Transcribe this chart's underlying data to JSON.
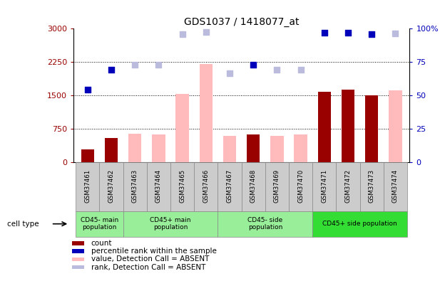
{
  "title": "GDS1037 / 1418077_at",
  "samples": [
    "GSM37461",
    "GSM37462",
    "GSM37463",
    "GSM37464",
    "GSM37465",
    "GSM37466",
    "GSM37467",
    "GSM37468",
    "GSM37469",
    "GSM37470",
    "GSM37471",
    "GSM37472",
    "GSM37473",
    "GSM37474"
  ],
  "is_absent": [
    false,
    false,
    true,
    true,
    true,
    true,
    true,
    false,
    true,
    true,
    false,
    false,
    false,
    true
  ],
  "count_values": [
    280,
    530,
    null,
    null,
    null,
    null,
    null,
    620,
    null,
    null,
    1580,
    1630,
    1500,
    null
  ],
  "absent_values": [
    null,
    null,
    640,
    620,
    1530,
    2200,
    590,
    null,
    590,
    620,
    null,
    null,
    null,
    1610
  ],
  "rank_present": [
    1630,
    2070,
    null,
    null,
    null,
    null,
    null,
    2180,
    null,
    null,
    2900,
    2910,
    2870,
    null
  ],
  "rank_absent": [
    null,
    null,
    2180,
    2180,
    2870,
    2920,
    2000,
    null,
    2070,
    2080,
    null,
    null,
    null,
    2890
  ],
  "groups": [
    {
      "label": "CD45- main\npopulation",
      "cols": [
        0,
        1
      ],
      "color": "#99ee99"
    },
    {
      "label": "CD45+ main\npopulation",
      "cols": [
        2,
        3,
        4,
        5
      ],
      "color": "#99ee99"
    },
    {
      "label": "CD45- side\npopulation",
      "cols": [
        6,
        7,
        8,
        9
      ],
      "color": "#99ee99"
    },
    {
      "label": "CD45+ side population",
      "cols": [
        10,
        11,
        12,
        13
      ],
      "color": "#33dd33"
    }
  ],
  "ylim_left": [
    0,
    3000
  ],
  "ylim_right": [
    0,
    100
  ],
  "yticks_left": [
    0,
    750,
    1500,
    2250,
    3000
  ],
  "yticks_right_vals": [
    0,
    25,
    50,
    75,
    100
  ],
  "yticks_right_labels": [
    "0",
    "25",
    "50",
    "75",
    "100%"
  ],
  "color_count": "#990000",
  "color_rank_present": "#0000bb",
  "color_absent_value": "#ffbbbb",
  "color_absent_rank": "#bbbbdd",
  "bar_width": 0.55,
  "dot_size": 35,
  "bg_color": "white",
  "cell_bg": "#cccccc",
  "legend_items": [
    {
      "color": "#990000",
      "label": "count"
    },
    {
      "color": "#0000bb",
      "label": "percentile rank within the sample"
    },
    {
      "color": "#ffbbbb",
      "label": "value, Detection Call = ABSENT"
    },
    {
      "color": "#bbbbdd",
      "label": "rank, Detection Call = ABSENT"
    }
  ]
}
